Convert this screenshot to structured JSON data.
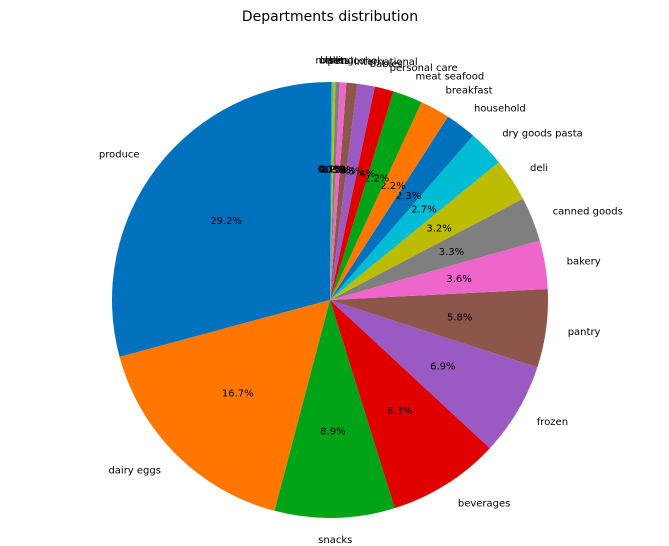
{
  "chart_data": {
    "type": "pie",
    "title": "Departments distribution",
    "start_angle_deg": 90,
    "direction": "counterclockwise",
    "slices": [
      {
        "label": "produce",
        "value": 29.2,
        "pct_text": "29.2%",
        "color": "#0072bd"
      },
      {
        "label": "dairy eggs",
        "value": 16.7,
        "pct_text": "16.7%",
        "color": "#ff7700"
      },
      {
        "label": "snacks",
        "value": 8.9,
        "pct_text": "8.9%",
        "color": "#00a416"
      },
      {
        "label": "beverages",
        "value": 8.3,
        "pct_text": "8.3%",
        "color": "#e00000"
      },
      {
        "label": "frozen",
        "value": 6.9,
        "pct_text": "6.9%",
        "color": "#9b59c4"
      },
      {
        "label": "pantry",
        "value": 5.8,
        "pct_text": "5.8%",
        "color": "#8c564b"
      },
      {
        "label": "bakery",
        "value": 3.6,
        "pct_text": "3.6%",
        "color": "#ee66cc"
      },
      {
        "label": "canned goods",
        "value": 3.3,
        "pct_text": "3.3%",
        "color": "#7f7f7f"
      },
      {
        "label": "deli",
        "value": 3.2,
        "pct_text": "3.2%",
        "color": "#bcbd00"
      },
      {
        "label": "dry goods pasta",
        "value": 2.7,
        "pct_text": "2.7%",
        "color": "#00bcd4"
      },
      {
        "label": "household",
        "value": 2.3,
        "pct_text": "2.3%",
        "color": "#0072bd"
      },
      {
        "label": "breakfast",
        "value": 2.2,
        "pct_text": "2.2%",
        "color": "#ff7700"
      },
      {
        "label": "meat seafood",
        "value": 2.2,
        "pct_text": "2.2%",
        "color": "#00a416"
      },
      {
        "label": "personal care",
        "value": 1.4,
        "pct_text": "1.4%",
        "color": "#e00000"
      },
      {
        "label": "babies",
        "value": 1.3,
        "pct_text": "1.3%",
        "color": "#9b59c4"
      },
      {
        "label": "international",
        "value": 0.8,
        "pct_text": "0.8%",
        "color": "#8c564b"
      },
      {
        "label": "alcohol",
        "value": 0.5,
        "pct_text": "0.5%",
        "color": "#ee66cc"
      },
      {
        "label": "pets",
        "value": 0.3,
        "pct_text": "0.3%",
        "color": "#7f7f7f"
      },
      {
        "label": "missing",
        "value": 0.2,
        "pct_text": "0.2%",
        "color": "#bcbd00"
      },
      {
        "label": "other",
        "value": 0.1,
        "pct_text": "0.1%",
        "color": "#00bcd4"
      },
      {
        "label": "bulk",
        "value": 0.1,
        "pct_text": "0.1%",
        "color": "#0072bd"
      }
    ]
  }
}
